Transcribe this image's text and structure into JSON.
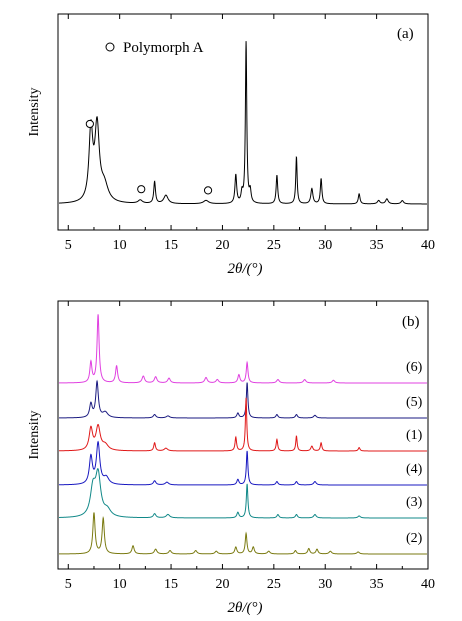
{
  "chart_data": [
    {
      "type": "line",
      "panel_label": "(a)",
      "xlabel": "2θ/(°)",
      "ylabel": "Intensity",
      "xlim": [
        4,
        40
      ],
      "xticks": [
        5,
        10,
        15,
        20,
        25,
        30,
        35,
        40
      ],
      "y_tick_labels": "none",
      "legend": {
        "marker": "open-circle",
        "label": "Polymorph A",
        "placement": "top-left"
      },
      "baseline": 0.02,
      "peaks": [
        {
          "x": 7.2,
          "h": 0.42,
          "w": 0.22
        },
        {
          "x": 7.8,
          "h": 0.44,
          "w": 0.26
        },
        {
          "x": 8.5,
          "h": 0.1,
          "w": 0.45
        },
        {
          "x": 12.0,
          "h": 0.02,
          "w": 0.25
        },
        {
          "x": 13.4,
          "h": 0.13,
          "w": 0.1
        },
        {
          "x": 14.5,
          "h": 0.05,
          "w": 0.25
        },
        {
          "x": 18.4,
          "h": 0.02,
          "w": 0.3
        },
        {
          "x": 21.3,
          "h": 0.17,
          "w": 0.1
        },
        {
          "x": 21.9,
          "h": 0.06,
          "w": 0.1
        },
        {
          "x": 22.3,
          "h": 0.96,
          "w": 0.08
        },
        {
          "x": 22.7,
          "h": 0.07,
          "w": 0.1
        },
        {
          "x": 25.3,
          "h": 0.17,
          "w": 0.09
        },
        {
          "x": 27.2,
          "h": 0.28,
          "w": 0.08
        },
        {
          "x": 28.7,
          "h": 0.09,
          "w": 0.12
        },
        {
          "x": 29.6,
          "h": 0.15,
          "w": 0.09
        },
        {
          "x": 33.3,
          "h": 0.06,
          "w": 0.1
        },
        {
          "x": 35.2,
          "h": 0.02,
          "w": 0.15
        },
        {
          "x": 36.0,
          "h": 0.03,
          "w": 0.15
        },
        {
          "x": 37.5,
          "h": 0.02,
          "w": 0.15
        }
      ],
      "polymorph_A_markers_x": [
        7.1,
        12.1,
        18.6
      ]
    },
    {
      "type": "line",
      "panel_label": "(b)",
      "xlabel": "2θ/(°)",
      "ylabel": "Intensity",
      "xlim": [
        4,
        40
      ],
      "xticks": [
        5,
        10,
        15,
        20,
        25,
        30,
        35,
        40
      ],
      "y_tick_labels": "none",
      "series": [
        {
          "name": "(6)",
          "color": "#e040e0",
          "peaks": [
            {
              "x": 7.2,
              "h": 0.3,
              "w": 0.12
            },
            {
              "x": 7.9,
              "h": 1.0,
              "w": 0.12
            },
            {
              "x": 9.7,
              "h": 0.25,
              "w": 0.12
            },
            {
              "x": 12.3,
              "h": 0.1,
              "w": 0.15
            },
            {
              "x": 13.5,
              "h": 0.09,
              "w": 0.15
            },
            {
              "x": 14.8,
              "h": 0.07,
              "w": 0.15
            },
            {
              "x": 18.4,
              "h": 0.08,
              "w": 0.15
            },
            {
              "x": 19.5,
              "h": 0.05,
              "w": 0.15
            },
            {
              "x": 21.6,
              "h": 0.12,
              "w": 0.12
            },
            {
              "x": 22.4,
              "h": 0.3,
              "w": 0.1
            },
            {
              "x": 25.4,
              "h": 0.05,
              "w": 0.15
            },
            {
              "x": 28.0,
              "h": 0.05,
              "w": 0.15
            },
            {
              "x": 30.8,
              "h": 0.04,
              "w": 0.15
            }
          ]
        },
        {
          "name": "(5)",
          "color": "#1a1a80",
          "peaks": [
            {
              "x": 7.2,
              "h": 0.2,
              "w": 0.15
            },
            {
              "x": 7.8,
              "h": 0.52,
              "w": 0.15
            },
            {
              "x": 8.6,
              "h": 0.08,
              "w": 0.3
            },
            {
              "x": 13.4,
              "h": 0.05,
              "w": 0.15
            },
            {
              "x": 14.7,
              "h": 0.03,
              "w": 0.2
            },
            {
              "x": 21.5,
              "h": 0.07,
              "w": 0.12
            },
            {
              "x": 22.4,
              "h": 0.52,
              "w": 0.09
            },
            {
              "x": 25.3,
              "h": 0.05,
              "w": 0.12
            },
            {
              "x": 27.2,
              "h": 0.05,
              "w": 0.12
            },
            {
              "x": 29.0,
              "h": 0.04,
              "w": 0.15
            }
          ]
        },
        {
          "name": "(1)",
          "color": "#e01818",
          "peaks": [
            {
              "x": 7.2,
              "h": 0.32,
              "w": 0.2
            },
            {
              "x": 7.9,
              "h": 0.35,
              "w": 0.25
            },
            {
              "x": 8.6,
              "h": 0.08,
              "w": 0.35
            },
            {
              "x": 13.4,
              "h": 0.12,
              "w": 0.1
            },
            {
              "x": 14.5,
              "h": 0.04,
              "w": 0.2
            },
            {
              "x": 21.3,
              "h": 0.2,
              "w": 0.09
            },
            {
              "x": 22.3,
              "h": 0.78,
              "w": 0.08
            },
            {
              "x": 25.3,
              "h": 0.17,
              "w": 0.09
            },
            {
              "x": 27.2,
              "h": 0.22,
              "w": 0.08
            },
            {
              "x": 28.7,
              "h": 0.07,
              "w": 0.12
            },
            {
              "x": 29.6,
              "h": 0.12,
              "w": 0.09
            },
            {
              "x": 33.3,
              "h": 0.05,
              "w": 0.1
            }
          ]
        },
        {
          "name": "(4)",
          "color": "#1818c0",
          "peaks": [
            {
              "x": 7.2,
              "h": 0.4,
              "w": 0.18
            },
            {
              "x": 7.9,
              "h": 0.6,
              "w": 0.2
            },
            {
              "x": 8.7,
              "h": 0.1,
              "w": 0.3
            },
            {
              "x": 13.4,
              "h": 0.06,
              "w": 0.15
            },
            {
              "x": 14.6,
              "h": 0.04,
              "w": 0.2
            },
            {
              "x": 21.5,
              "h": 0.08,
              "w": 0.12
            },
            {
              "x": 22.4,
              "h": 0.5,
              "w": 0.09
            },
            {
              "x": 25.3,
              "h": 0.05,
              "w": 0.12
            },
            {
              "x": 27.2,
              "h": 0.05,
              "w": 0.12
            },
            {
              "x": 29.0,
              "h": 0.05,
              "w": 0.15
            }
          ]
        },
        {
          "name": "(3)",
          "color": "#108888",
          "peaks": [
            {
              "x": 7.4,
              "h": 0.4,
              "w": 0.3
            },
            {
              "x": 7.9,
              "h": 0.6,
              "w": 0.3
            },
            {
              "x": 8.8,
              "h": 0.1,
              "w": 0.4
            },
            {
              "x": 13.4,
              "h": 0.06,
              "w": 0.15
            },
            {
              "x": 14.7,
              "h": 0.05,
              "w": 0.2
            },
            {
              "x": 21.5,
              "h": 0.08,
              "w": 0.12
            },
            {
              "x": 22.4,
              "h": 0.5,
              "w": 0.09
            },
            {
              "x": 25.4,
              "h": 0.05,
              "w": 0.12
            },
            {
              "x": 27.2,
              "h": 0.05,
              "w": 0.12
            },
            {
              "x": 29.0,
              "h": 0.05,
              "w": 0.15
            },
            {
              "x": 33.3,
              "h": 0.03,
              "w": 0.15
            }
          ]
        },
        {
          "name": "(2)",
          "color": "#7a7a10",
          "peaks": [
            {
              "x": 7.5,
              "h": 0.6,
              "w": 0.13
            },
            {
              "x": 8.4,
              "h": 0.52,
              "w": 0.13
            },
            {
              "x": 11.3,
              "h": 0.12,
              "w": 0.13
            },
            {
              "x": 13.5,
              "h": 0.07,
              "w": 0.15
            },
            {
              "x": 14.9,
              "h": 0.05,
              "w": 0.15
            },
            {
              "x": 17.4,
              "h": 0.05,
              "w": 0.15
            },
            {
              "x": 19.4,
              "h": 0.04,
              "w": 0.15
            },
            {
              "x": 21.3,
              "h": 0.1,
              "w": 0.12
            },
            {
              "x": 22.3,
              "h": 0.3,
              "w": 0.1
            },
            {
              "x": 23.0,
              "h": 0.1,
              "w": 0.12
            },
            {
              "x": 24.5,
              "h": 0.04,
              "w": 0.15
            },
            {
              "x": 27.1,
              "h": 0.05,
              "w": 0.12
            },
            {
              "x": 28.4,
              "h": 0.08,
              "w": 0.12
            },
            {
              "x": 29.2,
              "h": 0.07,
              "w": 0.12
            },
            {
              "x": 30.5,
              "h": 0.04,
              "w": 0.15
            },
            {
              "x": 33.2,
              "h": 0.03,
              "w": 0.15
            }
          ]
        }
      ]
    }
  ]
}
